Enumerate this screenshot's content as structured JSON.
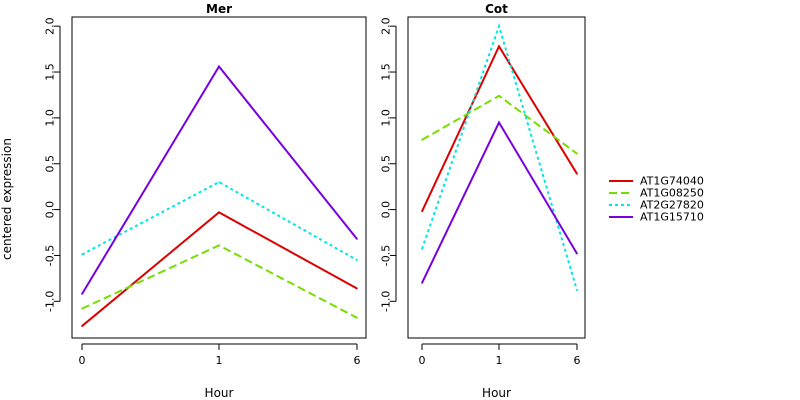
{
  "chart_data": {
    "type": "line",
    "ylabel": "centered expression",
    "xlabel": "Hour",
    "x_ticks": [
      "0",
      "1",
      "6"
    ],
    "ylim": [
      -1.4,
      2.1
    ],
    "y_ticks": [
      "-1.0",
      "-0.5",
      "0.0",
      "0.5",
      "1.0",
      "1.5",
      "2.0"
    ],
    "legend_position": "right",
    "legend": [
      {
        "name": "AT1G74040",
        "color": "#dd0000",
        "dash": "solid"
      },
      {
        "name": "AT1G08250",
        "color": "#77dd00",
        "dash": "dashed"
      },
      {
        "name": "AT2G27820",
        "color": "#00e5e5",
        "dash": "dotted"
      },
      {
        "name": "AT1G15710",
        "color": "#7700dd",
        "dash": "solid"
      }
    ],
    "panels": [
      {
        "title": "Mer",
        "series": [
          {
            "name": "AT1G74040",
            "values": [
              -1.27,
              -0.03,
              -0.86
            ]
          },
          {
            "name": "AT1G08250",
            "values": [
              -1.08,
              -0.39,
              -1.18
            ]
          },
          {
            "name": "AT2G27820",
            "values": [
              -0.49,
              0.3,
              -0.55
            ]
          },
          {
            "name": "AT1G15710",
            "values": [
              -0.92,
              1.56,
              -0.32
            ]
          }
        ]
      },
      {
        "title": "Cot",
        "series": [
          {
            "name": "AT1G74040",
            "values": [
              -0.02,
              1.78,
              0.39
            ]
          },
          {
            "name": "AT1G08250",
            "values": [
              0.76,
              1.24,
              0.61
            ]
          },
          {
            "name": "AT2G27820",
            "values": [
              -0.43,
              2.0,
              -0.88
            ]
          },
          {
            "name": "AT1G15710",
            "values": [
              -0.8,
              0.95,
              -0.48
            ]
          }
        ]
      }
    ]
  }
}
